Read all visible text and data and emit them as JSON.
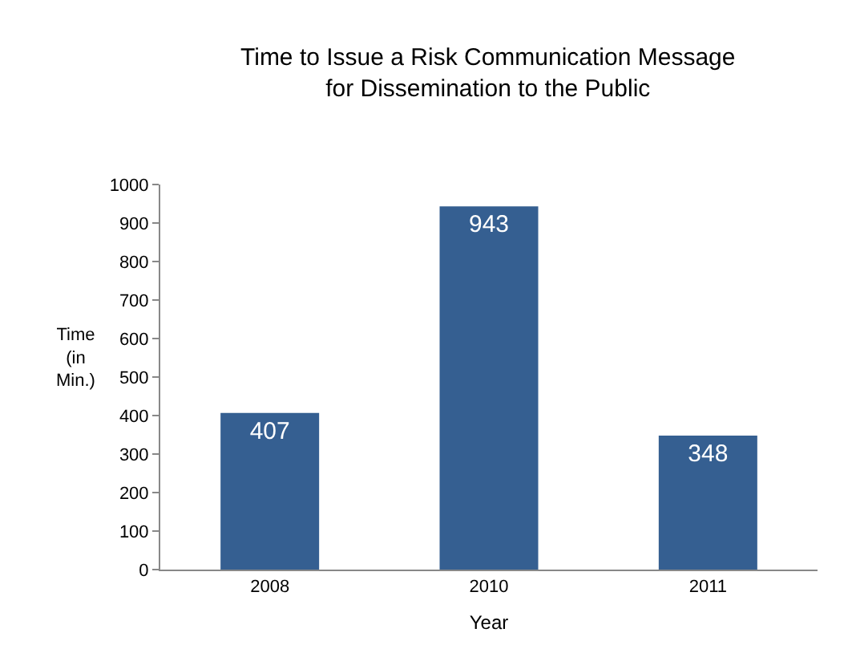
{
  "chart_data": {
    "type": "bar",
    "title": "Time to Issue a Risk Communication Message\nfor Dissemination to the Public",
    "xlabel": "Year",
    "ylabel": "Time\n(in\nMin.)",
    "categories": [
      "2008",
      "2010",
      "2011"
    ],
    "values": [
      407,
      943,
      348
    ],
    "color": "#355f91",
    "ylim": [
      0,
      1000
    ],
    "yticks": [
      0,
      100,
      200,
      300,
      400,
      500,
      600,
      700,
      800,
      900,
      1000
    ],
    "grid": false,
    "data_labels": true
  }
}
